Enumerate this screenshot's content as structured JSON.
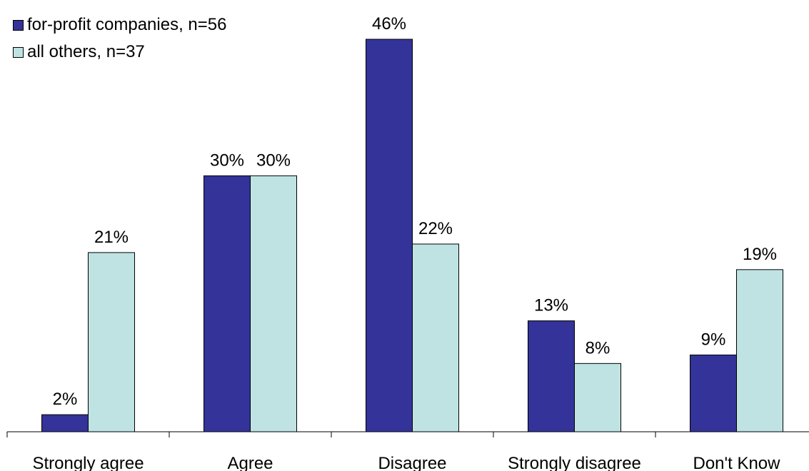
{
  "chart_data": {
    "type": "bar",
    "title": "",
    "xlabel": "",
    "ylabel": "",
    "ylim": [
      0,
      48
    ],
    "grid": false,
    "legend_position": "top-left",
    "categories": [
      "Strongly agree",
      "Agree",
      "Disagree",
      "Strongly disagree",
      "Don't Know"
    ],
    "series": [
      {
        "name": "for-profit companies, n=56",
        "color": "#333399",
        "values": [
          2,
          30,
          46,
          13,
          9
        ],
        "labels": [
          "2%",
          "30%",
          "46%",
          "13%",
          "9%"
        ]
      },
      {
        "name": "all others, n=37",
        "color": "#bfe3e3",
        "values": [
          21,
          30,
          22,
          8,
          19
        ],
        "labels": [
          "21%",
          "30%",
          "22%",
          "8%",
          "19%"
        ]
      }
    ]
  }
}
